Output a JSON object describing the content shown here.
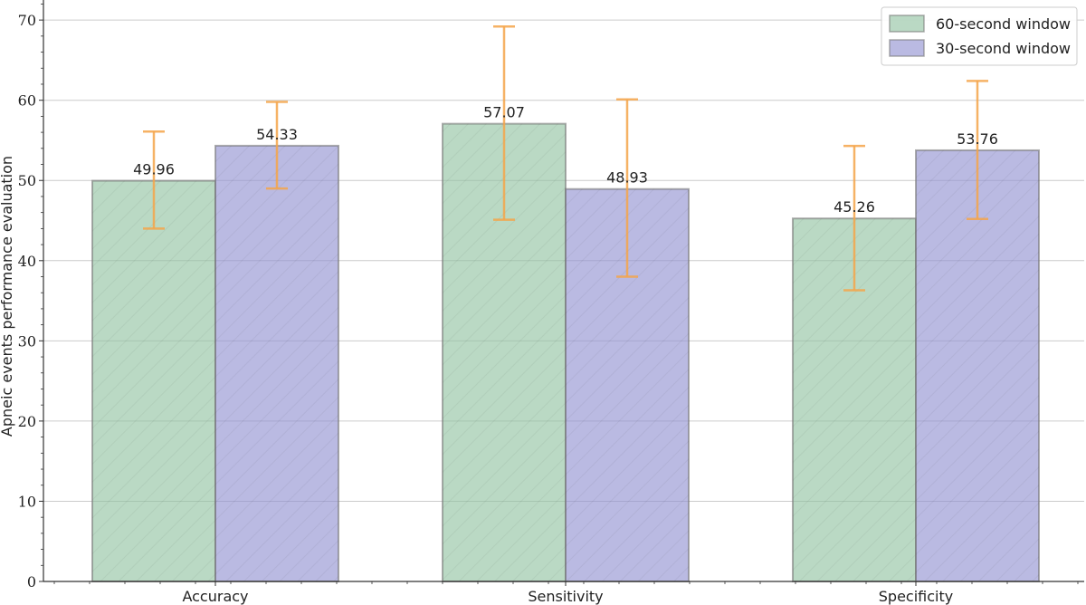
{
  "chart_data": {
    "type": "bar",
    "categories": [
      "Accuracy",
      "Sensitivity",
      "Specificity"
    ],
    "series": [
      {
        "name": "60-second window",
        "values": [
          49.96,
          57.07,
          45.26
        ],
        "error_low": [
          44.0,
          45.1,
          36.3
        ],
        "error_high": [
          56.1,
          69.2,
          54.3
        ],
        "color": "#8fc1a0",
        "labels": [
          "49.96",
          "57.07",
          "45.26"
        ]
      },
      {
        "name": "30-second window",
        "values": [
          54.33,
          48.93,
          53.76
        ],
        "error_low": [
          49.0,
          38.0,
          45.2
        ],
        "error_high": [
          59.8,
          60.1,
          62.4
        ],
        "color": "#8f8fd1",
        "labels": [
          "54.33",
          "48.93",
          "53.76"
        ]
      }
    ],
    "ylabel": "Apneic events performance evaluation",
    "xlabel": "",
    "ylim": [
      0,
      72.5
    ],
    "yticks": [
      0,
      10,
      20,
      30,
      40,
      50,
      60,
      70
    ],
    "error_color": "#f5a54a",
    "grid": true,
    "legend_position": "top-right"
  }
}
